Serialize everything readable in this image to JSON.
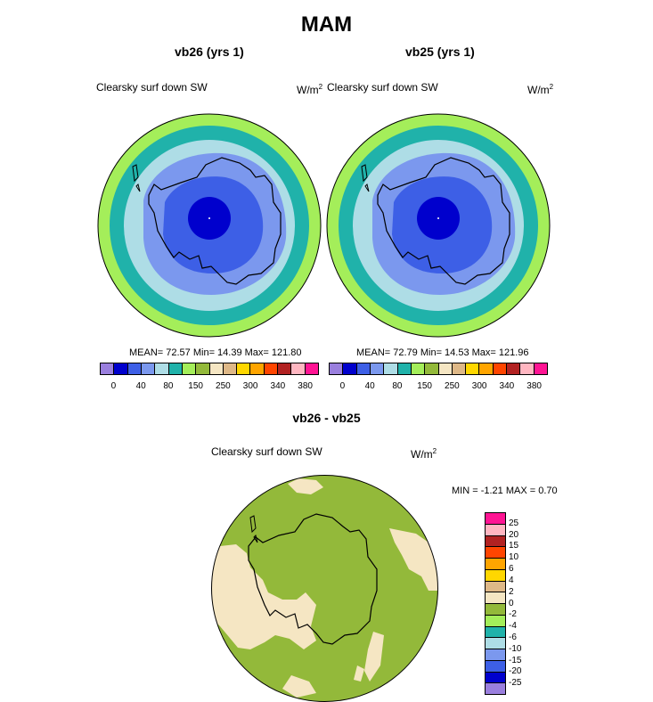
{
  "figure": {
    "title": "MAM"
  },
  "panels": [
    {
      "title": "vb26 (yrs 1)",
      "field": "Clearsky surf down SW",
      "units_base": "W/m",
      "units_exp": "2",
      "stats": "MEAN= 72.57  Min= 14.39  Max= 121.80"
    },
    {
      "title": "vb25 (yrs 1)",
      "field": "Clearsky surf down SW",
      "units_base": "W/m",
      "units_exp": "2",
      "stats": "MEAN= 72.79  Min= 14.53  Max= 121.96"
    }
  ],
  "diff_panel": {
    "title": "vb26 - vb25",
    "field": "Clearsky surf down SW",
    "units_base": "W/m",
    "units_exp": "2",
    "stats": "MIN =  -1.21 MAX =   0.70"
  },
  "colorbar_main": {
    "colors": [
      "#9a7fde",
      "#0000cd",
      "#3d5fe6",
      "#7b98ee",
      "#aedde6",
      "#20b2aa",
      "#a4ee5a",
      "#93b93a",
      "#f5e6c3",
      "#deb887",
      "#ffd700",
      "#ffa500",
      "#ff4500",
      "#b22222",
      "#ffb6c1",
      "#ff1493"
    ],
    "labels": [
      "0",
      "40",
      "80",
      "150",
      "250",
      "300",
      "340",
      "380"
    ]
  },
  "colorbar_diff": {
    "colors": [
      "#ff1493",
      "#ffb6c1",
      "#b22222",
      "#ff4500",
      "#ffa500",
      "#ffd700",
      "#deb887",
      "#f5e6c3",
      "#93b93a",
      "#a4ee5a",
      "#20b2aa",
      "#aedde6",
      "#7b98ee",
      "#3d5fe6",
      "#0000cd",
      "#9a7fde"
    ],
    "labels": [
      "25",
      "20",
      "15",
      "10",
      "6",
      "4",
      "2",
      "0",
      "-2",
      "-4",
      "-6",
      "-10",
      "-15",
      "-20",
      "-25"
    ]
  }
}
